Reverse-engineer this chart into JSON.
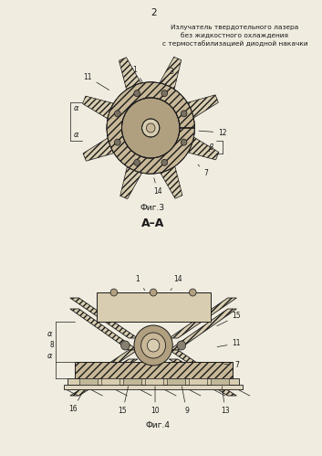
{
  "page_number": "2",
  "title_line1": "Излучатель твердотельного лазера",
  "title_line2": "без жидкостного охлаждения",
  "title_line3": "с термостабилизацией диодной накачки",
  "fig3_caption": "Фиг.3",
  "fig4_caption": "Фиг.4",
  "section_label": "А–А",
  "bg_color": "#f0ece0",
  "line_color": "#1a1a1a",
  "fill_hatch": "#c8b898",
  "fill_light": "#d8cdb0",
  "fill_white": "#f0ece0",
  "fill_dark": "#888070",
  "fill_mid": "#b0a080"
}
